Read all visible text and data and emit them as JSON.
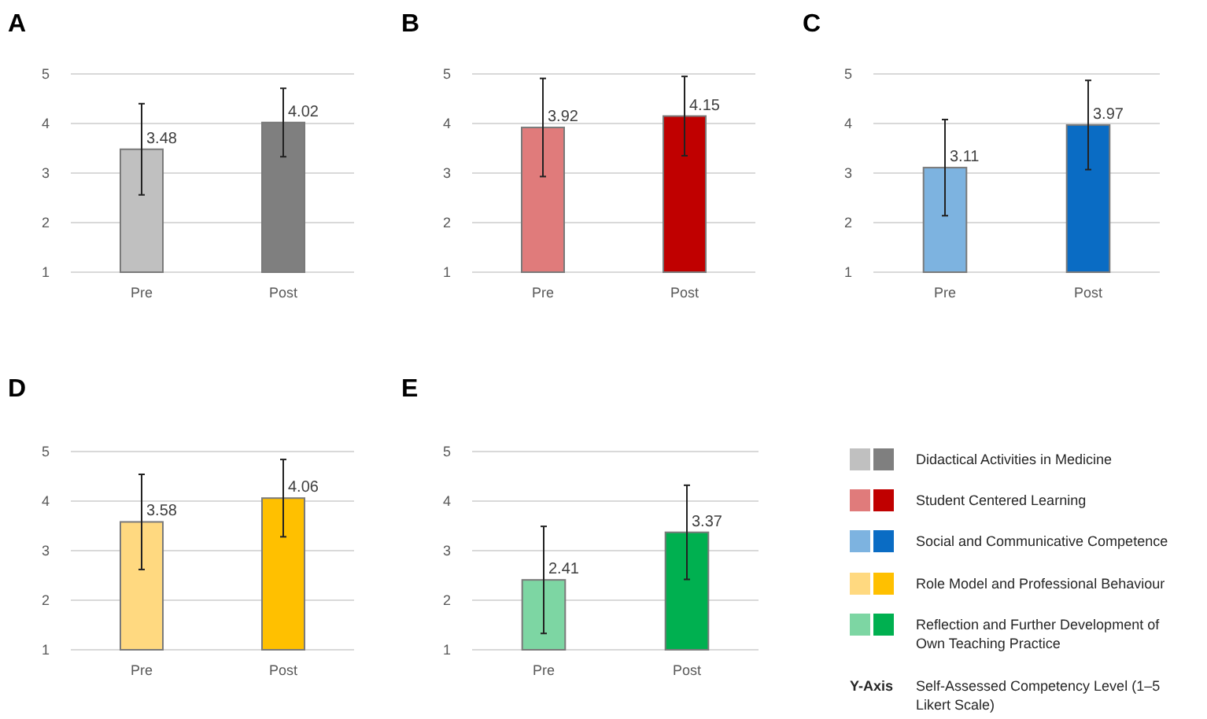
{
  "chart_data": [
    {
      "type": "bar",
      "title": "A",
      "categories": [
        "Pre",
        "Post"
      ],
      "values": [
        3.48,
        4.02
      ],
      "colors": [
        "#c0c0c0",
        "#7f7f7f"
      ],
      "errors": [
        0.92,
        0.69
      ],
      "data_labels": true,
      "ylim": [
        1,
        5
      ],
      "yticks": [
        1,
        2,
        3,
        4,
        5
      ],
      "grid": "y"
    },
    {
      "type": "bar",
      "title": "B",
      "categories": [
        "Pre",
        "Post"
      ],
      "values": [
        3.92,
        4.15
      ],
      "colors": [
        "#e07b7b",
        "#c00000"
      ],
      "errors": [
        0.99,
        0.8
      ],
      "data_labels": true,
      "ylim": [
        1,
        5
      ],
      "yticks": [
        1,
        2,
        3,
        4,
        5
      ],
      "grid": "y"
    },
    {
      "type": "bar",
      "title": "C",
      "categories": [
        "Pre",
        "Post"
      ],
      "values": [
        3.11,
        3.97
      ],
      "colors": [
        "#7db3e0",
        "#0a6cc4"
      ],
      "errors": [
        0.97,
        0.9
      ],
      "data_labels": true,
      "ylim": [
        1,
        5
      ],
      "yticks": [
        1,
        2,
        3,
        4,
        5
      ],
      "grid": "y"
    },
    {
      "type": "bar",
      "title": "D",
      "categories": [
        "Pre",
        "Post"
      ],
      "values": [
        3.58,
        4.06
      ],
      "colors": [
        "#ffd980",
        "#ffc000"
      ],
      "errors": [
        0.96,
        0.78
      ],
      "data_labels": true,
      "ylim": [
        1,
        5
      ],
      "yticks": [
        1,
        2,
        3,
        4,
        5
      ],
      "grid": "y"
    },
    {
      "type": "bar",
      "title": "E",
      "categories": [
        "Pre",
        "Post"
      ],
      "values": [
        2.41,
        3.37
      ],
      "colors": [
        "#7dd6a3",
        "#00b050"
      ],
      "errors": [
        1.08,
        0.95
      ],
      "data_labels": true,
      "ylim": [
        1,
        5
      ],
      "yticks": [
        1,
        2,
        3,
        4,
        5
      ],
      "grid": "y"
    },
    {
      "type": "other",
      "annotations": [
        "Didactical Activities in Medicine",
        "Student Centered Learning",
        "Social and Communicative Competence",
        "Role Model and Professional Behaviour",
        "Reflection and Further Development of Own Teaching Practice",
        "Y-Axis",
        "Self-Assessed Competency Level (1–5 Likert Scale)"
      ]
    }
  ]
}
